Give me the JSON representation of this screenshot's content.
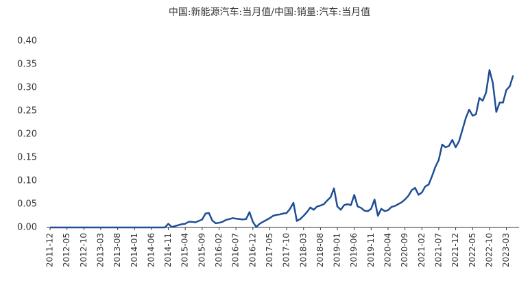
{
  "chart_data": {
    "type": "line",
    "title": "中国:新能源汽车:当月值/中国:销量:汽车:当月值",
    "categories": [
      "2011-12",
      null,
      null,
      null,
      null,
      "2012-05",
      null,
      null,
      null,
      null,
      "2012-10",
      null,
      null,
      null,
      null,
      "2013-03",
      null,
      null,
      null,
      null,
      "2013-08",
      null,
      null,
      null,
      null,
      "2014-01",
      null,
      null,
      null,
      null,
      "2014-06",
      null,
      null,
      null,
      null,
      "2014-11",
      null,
      null,
      null,
      null,
      "2015-04",
      null,
      null,
      null,
      null,
      "2015-09",
      null,
      null,
      null,
      null,
      "2016-02",
      null,
      null,
      null,
      null,
      "2016-07",
      null,
      null,
      null,
      null,
      "2016-12",
      null,
      null,
      null,
      null,
      "2017-05",
      null,
      null,
      null,
      null,
      "2017-10",
      null,
      null,
      null,
      null,
      "2018-03",
      null,
      null,
      null,
      null,
      "2018-08",
      null,
      null,
      null,
      null,
      "2019-01",
      null,
      null,
      null,
      null,
      "2019-06",
      null,
      null,
      null,
      null,
      "2019-11",
      null,
      null,
      null,
      null,
      "2020-04",
      null,
      null,
      null,
      null,
      "2020-09",
      null,
      null,
      null,
      null,
      "2021-02",
      null,
      null,
      null,
      null,
      "2021-07",
      null,
      null,
      null,
      null,
      "2021-12",
      null,
      null,
      null,
      null,
      "2022-05",
      null,
      null,
      null,
      null,
      "2022-10",
      null,
      null,
      null,
      null,
      "2023-03",
      null,
      null
    ],
    "values": [
      0,
      0,
      0,
      0,
      0,
      0,
      0,
      0,
      0,
      0,
      0,
      0,
      0,
      0,
      0,
      0,
      0,
      0,
      0,
      0,
      0,
      0,
      0,
      0,
      0,
      0,
      0,
      0,
      0,
      0,
      0,
      0,
      0,
      0,
      0,
      0.008,
      0.001,
      0.003,
      0.005,
      0.007,
      0.008,
      0.012,
      0.012,
      0.011,
      0.014,
      0.017,
      0.03,
      0.031,
      0.015,
      0.009,
      0.01,
      0.012,
      0.016,
      0.018,
      0.02,
      0.019,
      0.018,
      0.017,
      0.018,
      0.033,
      0.012,
      0.001,
      0.008,
      0.012,
      0.016,
      0.02,
      0.025,
      0.027,
      0.028,
      0.03,
      0.031,
      0.04,
      0.053,
      0.014,
      0.018,
      0.025,
      0.033,
      0.043,
      0.038,
      0.045,
      0.047,
      0.05,
      0.058,
      0.065,
      0.084,
      0.045,
      0.038,
      0.048,
      0.05,
      0.048,
      0.07,
      0.045,
      0.042,
      0.036,
      0.035,
      0.04,
      0.06,
      0.025,
      0.04,
      0.035,
      0.037,
      0.044,
      0.046,
      0.05,
      0.054,
      0.06,
      0.068,
      0.08,
      0.085,
      0.07,
      0.075,
      0.088,
      0.092,
      0.11,
      0.13,
      0.145,
      0.178,
      0.172,
      0.175,
      0.188,
      0.172,
      0.185,
      0.21,
      0.235,
      0.253,
      0.24,
      0.243,
      0.278,
      0.272,
      0.29,
      0.338,
      0.31,
      0.248,
      0.268,
      0.268,
      0.295,
      0.303,
      0.326
    ],
    "color": "#1f4e96",
    "ylim": [
      0,
      0.4
    ],
    "yticks": [
      {
        "value": 0,
        "label": "0.00"
      },
      {
        "value": 0.05,
        "label": "0.05"
      },
      {
        "value": 0.1,
        "label": "0.10"
      },
      {
        "value": 0.15,
        "label": "0.15"
      },
      {
        "value": 0.2,
        "label": "0.20"
      },
      {
        "value": 0.25,
        "label": "0.25"
      },
      {
        "value": 0.3,
        "label": "0.30"
      },
      {
        "value": 0.35,
        "label": "0.35"
      },
      {
        "value": 0.4,
        "label": "0.40"
      }
    ]
  }
}
